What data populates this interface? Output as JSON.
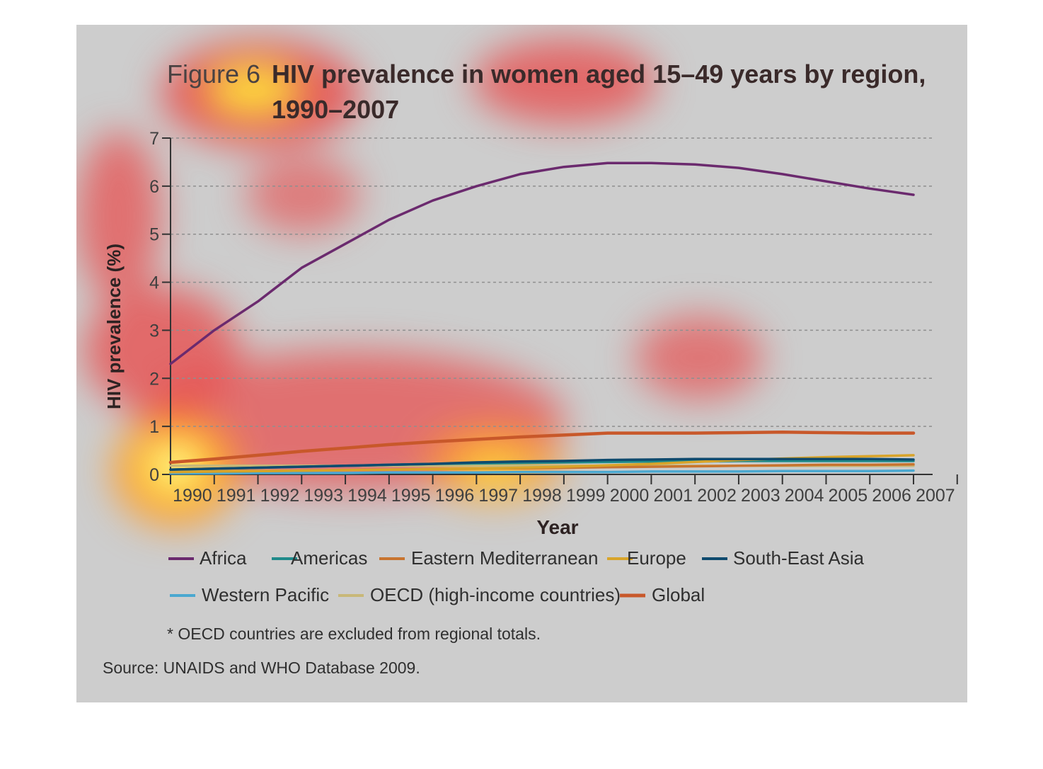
{
  "title_prefix": "Figure 6",
  "title_line1": "HIV prevalence in women aged 15–49 years by region,",
  "title_line2": "1990–2007",
  "note": "* OECD countries are excluded from regional totals.",
  "source": "Source: UNAIDS and WHO Database 2009.",
  "chart_data": {
    "type": "line",
    "title": "HIV prevalence in women aged 15–49 years by region, 1990–2007",
    "xlabel": "Year",
    "ylabel": "HIV prevalence (%)",
    "ylim": [
      0,
      7
    ],
    "yticks": [
      0,
      1,
      2,
      3,
      4,
      5,
      6,
      7
    ],
    "grid": "horizontal dashed",
    "legend": "bottom",
    "x": [
      1990,
      1991,
      1992,
      1993,
      1994,
      1995,
      1996,
      1997,
      1998,
      1999,
      2000,
      2001,
      2002,
      2003,
      2004,
      2005,
      2006,
      2007
    ],
    "series": [
      {
        "name": "Africa",
        "color": "#6b2a6e",
        "values": [
          2.3,
          3.0,
          3.6,
          4.3,
          4.8,
          5.3,
          5.7,
          6.0,
          6.25,
          6.4,
          6.48,
          6.48,
          6.45,
          6.38,
          6.25,
          6.1,
          5.95,
          5.82
        ]
      },
      {
        "name": "Americas",
        "color": "#1f8a8a",
        "values": [
          0.1,
          0.12,
          0.14,
          0.16,
          0.18,
          0.2,
          0.22,
          0.23,
          0.24,
          0.25,
          0.26,
          0.27,
          0.27,
          0.28,
          0.28,
          0.28,
          0.28,
          0.28
        ]
      },
      {
        "name": "Eastern Mediterranean",
        "color": "#c8742f",
        "values": [
          0.05,
          0.06,
          0.07,
          0.08,
          0.09,
          0.1,
          0.11,
          0.12,
          0.13,
          0.14,
          0.15,
          0.16,
          0.17,
          0.18,
          0.19,
          0.2,
          0.2,
          0.21
        ]
      },
      {
        "name": "Europe",
        "color": "#d8a42a",
        "values": [
          0.05,
          0.06,
          0.07,
          0.08,
          0.09,
          0.1,
          0.11,
          0.12,
          0.14,
          0.16,
          0.19,
          0.22,
          0.26,
          0.3,
          0.33,
          0.36,
          0.38,
          0.4
        ]
      },
      {
        "name": "South-East Asia",
        "color": "#0e4a6e",
        "values": [
          0.1,
          0.12,
          0.14,
          0.16,
          0.18,
          0.2,
          0.22,
          0.25,
          0.27,
          0.28,
          0.3,
          0.31,
          0.32,
          0.32,
          0.32,
          0.32,
          0.32,
          0.31
        ]
      },
      {
        "name": "Western Pacific",
        "color": "#4aa8d0",
        "values": [
          0.02,
          0.02,
          0.03,
          0.03,
          0.03,
          0.04,
          0.04,
          0.04,
          0.05,
          0.05,
          0.05,
          0.06,
          0.06,
          0.06,
          0.07,
          0.07,
          0.07,
          0.08
        ]
      },
      {
        "name": "OECD (high-income countries)",
        "color": "#c8b878",
        "values": [
          0.18,
          0.18,
          0.18,
          0.18,
          0.18,
          0.18,
          0.18,
          0.18,
          0.18,
          0.18,
          0.18,
          0.18,
          0.18,
          0.18,
          0.18,
          0.18,
          0.18,
          0.18
        ]
      },
      {
        "name": "Global",
        "color": "#c8582a",
        "values": [
          0.25,
          0.32,
          0.4,
          0.48,
          0.55,
          0.62,
          0.68,
          0.73,
          0.78,
          0.82,
          0.86,
          0.86,
          0.86,
          0.87,
          0.88,
          0.87,
          0.86,
          0.86
        ]
      }
    ]
  }
}
